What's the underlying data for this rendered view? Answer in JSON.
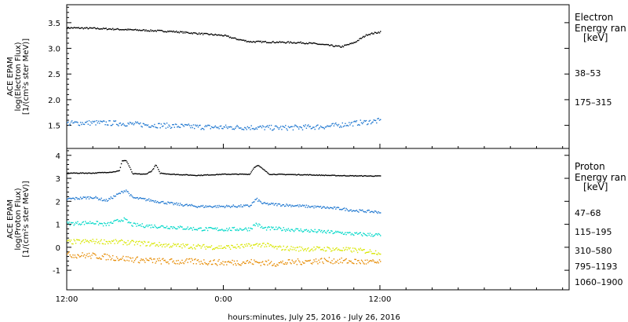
{
  "chart_data": [
    {
      "type": "scatter",
      "ylabel": [
        "ACE EPAM",
        "log(Electron Flux)",
        "[1/(cm²s ster MeV)]"
      ],
      "ylim": [
        1.05,
        3.85
      ],
      "yticks": [
        "1.5",
        "2.0",
        "2.5",
        "3.0",
        "3.5"
      ],
      "ytick_values": [
        1.5,
        2.0,
        2.5,
        3.0,
        3.5
      ],
      "legend": {
        "title": [
          "Electron",
          "Energy ran",
          "[keV]"
        ]
      },
      "series": [
        {
          "name": "38–53",
          "color": "#000000",
          "points": [
            [
              0,
              3.41
            ],
            [
              2,
              3.4
            ],
            [
              4,
              3.38
            ],
            [
              6,
              3.36
            ],
            [
              8,
              3.34
            ],
            [
              10,
              3.3
            ],
            [
              12,
              3.26
            ],
            [
              13,
              3.19
            ],
            [
              14,
              3.14
            ],
            [
              16,
              3.13
            ],
            [
              18,
              3.12
            ],
            [
              19,
              3.1
            ],
            [
              20,
              3.07
            ],
            [
              21,
              3.04
            ],
            [
              22,
              3.12
            ],
            [
              23,
              3.28
            ],
            [
              24,
              3.33
            ]
          ]
        },
        {
          "name": "175–315",
          "color": "#1f77d0",
          "points": [
            [
              0,
              1.55
            ],
            [
              2,
              1.56
            ],
            [
              4,
              1.55
            ],
            [
              6,
              1.52
            ],
            [
              8,
              1.5
            ],
            [
              10,
              1.48
            ],
            [
              12,
              1.47
            ],
            [
              14,
              1.47
            ],
            [
              16,
              1.46
            ],
            [
              18,
              1.47
            ],
            [
              20,
              1.49
            ],
            [
              22,
              1.55
            ],
            [
              24,
              1.6
            ]
          ]
        }
      ]
    },
    {
      "type": "scatter",
      "ylabel": [
        "ACE EPAM",
        "log(Proton Flux)",
        "[1/(cm²s ster MeV)]"
      ],
      "ylim": [
        -1.85,
        4.3
      ],
      "yticks": [
        "-1",
        "0",
        "1",
        "2",
        "3",
        "4"
      ],
      "ytick_values": [
        -1,
        0,
        1,
        2,
        3,
        4
      ],
      "legend": {
        "title": [
          "Proton",
          "Energy ran",
          "[keV]"
        ]
      },
      "series": [
        {
          "name": "47–68",
          "color": "#000000",
          "points": [
            [
              0,
              3.25
            ],
            [
              2,
              3.25
            ],
            [
              3.5,
              3.3
            ],
            [
              4,
              3.35
            ],
            [
              4.2,
              3.78
            ],
            [
              4.5,
              3.8
            ],
            [
              4.8,
              3.5
            ],
            [
              5,
              3.22
            ],
            [
              6,
              3.2
            ],
            [
              6.5,
              3.35
            ],
            [
              6.8,
              3.62
            ],
            [
              7.1,
              3.25
            ],
            [
              8,
              3.2
            ],
            [
              10,
              3.15
            ],
            [
              12,
              3.2
            ],
            [
              14,
              3.2
            ],
            [
              14.3,
              3.48
            ],
            [
              14.6,
              3.6
            ],
            [
              15,
              3.42
            ],
            [
              15.5,
              3.2
            ],
            [
              18,
              3.18
            ],
            [
              20,
              3.15
            ],
            [
              22,
              3.13
            ],
            [
              24,
              3.12
            ]
          ]
        },
        {
          "name": "115–195",
          "color": "#1f77d0",
          "points": [
            [
              0,
              2.12
            ],
            [
              2,
              2.2
            ],
            [
              3,
              2.05
            ],
            [
              4.2,
              2.42
            ],
            [
              4.5,
              2.52
            ],
            [
              5,
              2.18
            ],
            [
              6,
              2.1
            ],
            [
              8,
              1.92
            ],
            [
              10,
              1.8
            ],
            [
              12,
              1.8
            ],
            [
              14,
              1.82
            ],
            [
              14.5,
              2.12
            ],
            [
              15,
              1.92
            ],
            [
              17,
              1.85
            ],
            [
              19,
              1.78
            ],
            [
              21,
              1.7
            ],
            [
              22,
              1.62
            ],
            [
              24,
              1.55
            ]
          ]
        },
        {
          "name": "310–580",
          "color": "#00d8c8",
          "points": [
            [
              0,
              1.05
            ],
            [
              2,
              1.1
            ],
            [
              3,
              1.0
            ],
            [
              4.3,
              1.25
            ],
            [
              5,
              1.0
            ],
            [
              6,
              0.96
            ],
            [
              8,
              0.9
            ],
            [
              10,
              0.82
            ],
            [
              12,
              0.8
            ],
            [
              14,
              0.82
            ],
            [
              14.5,
              1.05
            ],
            [
              15,
              0.85
            ],
            [
              17,
              0.8
            ],
            [
              19,
              0.72
            ],
            [
              21,
              0.65
            ],
            [
              22,
              0.6
            ],
            [
              24,
              0.55
            ]
          ]
        },
        {
          "name": "795–1193",
          "color": "#d8e600",
          "points": [
            [
              0,
              0.25
            ],
            [
              2,
              0.28
            ],
            [
              4,
              0.25
            ],
            [
              6,
              0.18
            ],
            [
              8,
              0.1
            ],
            [
              10,
              0.05
            ],
            [
              12,
              0.02
            ],
            [
              14,
              0.08
            ],
            [
              15,
              0.15
            ],
            [
              16,
              0.0
            ],
            [
              18,
              -0.05
            ],
            [
              20,
              -0.05
            ],
            [
              22,
              -0.1
            ],
            [
              24,
              -0.2
            ]
          ]
        },
        {
          "name": "1060–1900",
          "color": "#e68a00",
          "points": [
            [
              0,
              -0.3
            ],
            [
              2,
              -0.35
            ],
            [
              4,
              -0.45
            ],
            [
              6,
              -0.55
            ],
            [
              8,
              -0.6
            ],
            [
              10,
              -0.6
            ],
            [
              12,
              -0.65
            ],
            [
              14,
              -0.62
            ],
            [
              16,
              -0.68
            ],
            [
              18,
              -0.6
            ],
            [
              20,
              -0.55
            ],
            [
              22,
              -0.6
            ],
            [
              24,
              -0.65
            ]
          ]
        }
      ]
    }
  ],
  "xaxis": {
    "label": "hours:minutes, July 25, 2016 - July 26, 2016",
    "range": [
      0,
      38.5
    ],
    "ticks": [
      "12:00",
      "0:00",
      "12:00"
    ],
    "tick_hours": [
      0,
      12,
      24
    ]
  }
}
